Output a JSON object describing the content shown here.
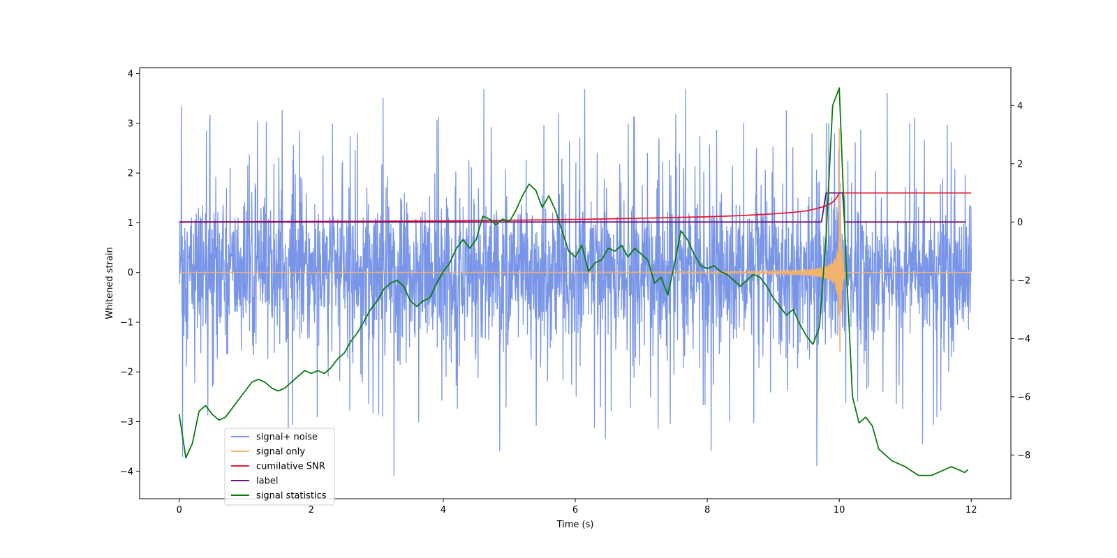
{
  "chart_data": {
    "type": "line",
    "title": "",
    "xlabel": "Time (s)",
    "ylabel_left": "Whitened strain",
    "ylabel_right": "",
    "xlim": [
      -0.6,
      12.6
    ],
    "ylim_left": [
      -4.55,
      4.12
    ],
    "ylim_right": [
      -9.5,
      5.3
    ],
    "x_ticks": [
      0,
      2,
      4,
      6,
      8,
      10,
      12
    ],
    "x_tick_labels": [
      "0",
      "2",
      "4",
      "6",
      "8",
      "10",
      "12"
    ],
    "y_left_ticks": [
      -4,
      -3,
      -2,
      -1,
      0,
      1,
      2,
      3,
      4
    ],
    "y_left_tick_labels": [
      "−4",
      "−3",
      "−2",
      "−1",
      "0",
      "1",
      "2",
      "3",
      "4"
    ],
    "y_right_ticks": [
      -8,
      -6,
      -4,
      -2,
      0,
      2,
      4
    ],
    "y_right_tick_labels": [
      "−8",
      "−6",
      "−4",
      "−2",
      "0",
      "2",
      "4"
    ],
    "grid": false,
    "legend_position": "lower-left",
    "series": [
      {
        "name": "signal+ noise",
        "color": "#7895E8",
        "axis": "left",
        "kind": "noise",
        "x_range": [
          0,
          12
        ],
        "band_low": -1.1,
        "band_high": 1.6,
        "spike_max": 3.75,
        "spike_min": -4.15
      },
      {
        "name": "signal only",
        "color": "#F2B36E",
        "axis": "left",
        "kind": "chirp",
        "x_range": [
          0,
          12
        ],
        "merger_time": 10.0,
        "peak_amplitude": 2.9
      },
      {
        "name": "cumilative SNR",
        "color": "#E8192C",
        "axis": "right",
        "x": [
          0,
          1,
          2,
          3,
          4,
          5,
          6,
          7,
          8,
          8.5,
          9,
          9.3,
          9.5,
          9.6,
          9.7,
          9.8,
          9.85,
          9.9,
          9.95,
          10,
          12
        ],
        "y": [
          0,
          0.01,
          0.02,
          0.03,
          0.04,
          0.06,
          0.09,
          0.13,
          0.18,
          0.22,
          0.28,
          0.33,
          0.38,
          0.43,
          0.49,
          0.56,
          0.61,
          0.68,
          0.8,
          1,
          1
        ]
      },
      {
        "name": "label",
        "color": "#6A0F80",
        "axis": "right",
        "x": [
          0,
          9.73,
          9.8,
          10.05,
          10.08,
          11.92
        ],
        "y": [
          0,
          0,
          1,
          1,
          0,
          0
        ]
      },
      {
        "name": "signal statistics",
        "color": "#0A7A0A",
        "axis": "right",
        "x": [
          0,
          0.1,
          0.2,
          0.3,
          0.4,
          0.5,
          0.6,
          0.7,
          0.8,
          0.9,
          1.0,
          1.1,
          1.2,
          1.3,
          1.4,
          1.5,
          1.6,
          1.7,
          1.8,
          1.9,
          2.0,
          2.1,
          2.2,
          2.3,
          2.4,
          2.5,
          2.6,
          2.7,
          2.8,
          2.9,
          3.0,
          3.1,
          3.2,
          3.3,
          3.4,
          3.5,
          3.6,
          3.7,
          3.8,
          3.9,
          4.0,
          4.1,
          4.2,
          4.3,
          4.4,
          4.5,
          4.6,
          4.7,
          4.8,
          4.9,
          5.0,
          5.1,
          5.2,
          5.3,
          5.4,
          5.5,
          5.6,
          5.7,
          5.8,
          5.9,
          6.0,
          6.1,
          6.2,
          6.3,
          6.4,
          6.5,
          6.6,
          6.7,
          6.8,
          6.9,
          7.0,
          7.1,
          7.2,
          7.3,
          7.4,
          7.5,
          7.6,
          7.7,
          7.8,
          7.9,
          8.0,
          8.1,
          8.2,
          8.3,
          8.4,
          8.5,
          8.6,
          8.7,
          8.8,
          8.9,
          9.0,
          9.1,
          9.2,
          9.3,
          9.4,
          9.5,
          9.6,
          9.7,
          9.8,
          9.9,
          10.0,
          10.1,
          10.2,
          10.3,
          10.4,
          10.5,
          10.6,
          10.7,
          10.8,
          10.9,
          11.0,
          11.2,
          11.4,
          11.6,
          11.7,
          11.8,
          11.9,
          11.95
        ],
        "y": [
          -6.6,
          -8.1,
          -7.6,
          -6.5,
          -6.3,
          -6.6,
          -6.8,
          -6.7,
          -6.4,
          -6.1,
          -5.8,
          -5.5,
          -5.4,
          -5.5,
          -5.7,
          -5.8,
          -5.7,
          -5.5,
          -5.3,
          -5.1,
          -5.2,
          -5.1,
          -5.2,
          -5.0,
          -4.7,
          -4.5,
          -4.1,
          -3.8,
          -3.4,
          -3.0,
          -2.7,
          -2.3,
          -2.1,
          -2.0,
          -2.2,
          -2.7,
          -2.9,
          -2.7,
          -2.6,
          -2.1,
          -1.7,
          -1.4,
          -0.9,
          -0.6,
          -0.9,
          -0.6,
          0.2,
          0.1,
          -0.1,
          0.1,
          0.0,
          0.4,
          0.9,
          1.3,
          1.1,
          0.5,
          0.9,
          0.4,
          -0.3,
          -1.0,
          -1.2,
          -0.8,
          -1.7,
          -1.4,
          -1.3,
          -0.9,
          -1.0,
          -0.8,
          -1.2,
          -0.9,
          -1.1,
          -1.3,
          -2.1,
          -1.9,
          -2.5,
          -1.5,
          -0.3,
          -0.6,
          -1.1,
          -1.5,
          -1.6,
          -1.5,
          -1.7,
          -1.8,
          -2.0,
          -2.2,
          -2.0,
          -1.8,
          -1.9,
          -2.2,
          -2.6,
          -2.9,
          -3.2,
          -3.0,
          -3.5,
          -3.9,
          -4.2,
          -3.6,
          -0.5,
          4.0,
          4.6,
          -1.2,
          -6.0,
          -6.9,
          -6.7,
          -7.0,
          -7.8,
          -8.0,
          -8.2,
          -8.3,
          -8.4,
          -8.7,
          -8.7,
          -8.5,
          -8.4,
          -8.5,
          -8.6,
          -8.5
        ]
      }
    ]
  }
}
